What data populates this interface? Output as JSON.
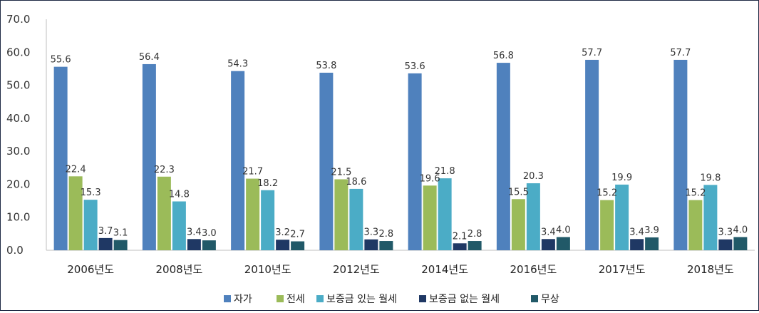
{
  "chart_data": {
    "type": "bar",
    "title": "",
    "xlabel": "",
    "ylabel": "",
    "ylim": [
      0,
      70
    ],
    "yticks": [
      "0.0",
      "10.0",
      "20.0",
      "30.0",
      "40.0",
      "50.0",
      "60.0",
      "70.0"
    ],
    "categories": [
      "2006년도",
      "2008년도",
      "2010년도",
      "2012년도",
      "2014년도",
      "2016년도",
      "2017년도",
      "2018년도"
    ],
    "series": [
      {
        "name": "자가",
        "color": "#4f81bd",
        "values": [
          55.6,
          56.4,
          54.3,
          53.8,
          53.6,
          56.8,
          57.7,
          57.7
        ]
      },
      {
        "name": "전세",
        "color": "#9bbb59",
        "values": [
          22.4,
          22.3,
          21.7,
          21.5,
          19.6,
          15.5,
          15.2,
          15.2
        ]
      },
      {
        "name": "보증금 있는 월세",
        "color": "#4bacc6",
        "values": [
          15.3,
          14.8,
          18.2,
          18.6,
          21.8,
          20.3,
          19.9,
          19.8
        ]
      },
      {
        "name": "보증금 없는 월세",
        "color": "#1f3864",
        "values": [
          3.7,
          3.4,
          3.2,
          3.3,
          2.1,
          3.4,
          3.4,
          3.3
        ]
      },
      {
        "name": "무상",
        "color": "#215968",
        "values": [
          3.1,
          3.0,
          2.7,
          2.8,
          2.8,
          4.0,
          3.9,
          4.0
        ]
      }
    ],
    "legend_position": "bottom",
    "grid": false
  }
}
